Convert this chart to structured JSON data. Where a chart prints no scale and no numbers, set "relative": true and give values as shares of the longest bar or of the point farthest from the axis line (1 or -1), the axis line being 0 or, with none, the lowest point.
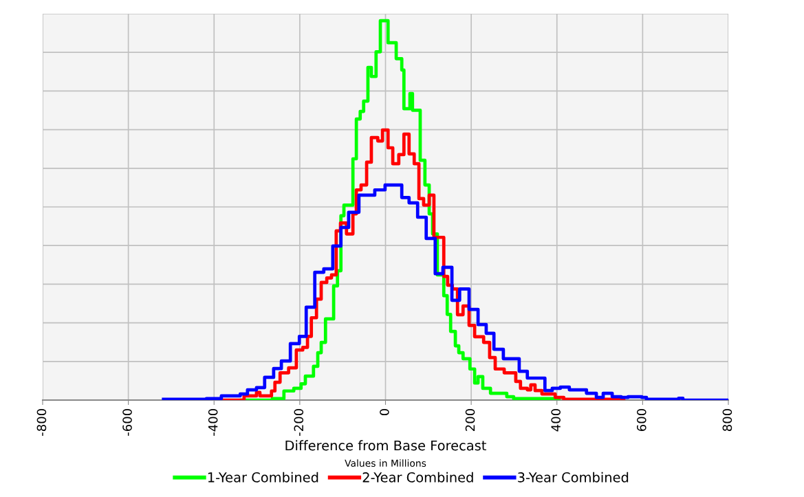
{
  "chart_data": {
    "type": "step",
    "xlabel": "Difference from Base Forecast",
    "annotations": [
      "Values in Millions"
    ],
    "relative": true,
    "xlim": [
      -800,
      800
    ],
    "xticks": [
      -800,
      -600,
      -400,
      -200,
      0,
      200,
      400,
      600,
      800
    ],
    "grid": true,
    "legend": "bottom",
    "line_style": "solid",
    "marker": "none",
    "series": [
      {
        "name": "1-Year Combined",
        "color": "#00ff00",
        "x": [
          -336,
          -264,
          -237,
          -214,
          -197,
          -187,
          -168,
          -158,
          -150,
          -140,
          -121,
          -112,
          -104,
          -97,
          -76,
          -68,
          -59,
          -51,
          -41,
          -33,
          -22,
          -12,
          6,
          25,
          38,
          43,
          57,
          63,
          81,
          92,
          102,
          110,
          121,
          136,
          144,
          152,
          163,
          171,
          181,
          197,
          208,
          216,
          227,
          245,
          283,
          299,
          405
        ],
        "values": [
          0,
          0.004,
          0.024,
          0.031,
          0.043,
          0.063,
          0.089,
          0.125,
          0.152,
          0.214,
          0.301,
          0.341,
          0.486,
          0.514,
          0.636,
          0.741,
          0.761,
          0.788,
          0.877,
          0.853,
          0.918,
          1,
          0.942,
          0.9,
          0.87,
          0.768,
          0.808,
          0.764,
          0.632,
          0.567,
          0.491,
          0.438,
          0.33,
          0.275,
          0.226,
          0.181,
          0.143,
          0.125,
          0.109,
          0.082,
          0.045,
          0.062,
          0.031,
          0.018,
          0.009,
          0.004,
          0
        ]
      },
      {
        "name": "2-Year Combined",
        "color": "#ff0000",
        "x": [
          -383,
          -330,
          -301,
          -293,
          -266,
          -258,
          -246,
          -226,
          -208,
          -193,
          -182,
          -173,
          -161,
          -150,
          -137,
          -126,
          -115,
          -105,
          -91,
          -76,
          -68,
          -57,
          -44,
          -33,
          -18,
          -7,
          6,
          17,
          31,
          43,
          55,
          67,
          78,
          89,
          102,
          113,
          136,
          145,
          156,
          168,
          181,
          195,
          208,
          229,
          243,
          256,
          277,
          304,
          315,
          331,
          339,
          349,
          365,
          396,
          416,
          556
        ],
        "values": [
          0,
          0.011,
          0.02,
          0.011,
          0.024,
          0.047,
          0.072,
          0.085,
          0.132,
          0.139,
          0.168,
          0.217,
          0.266,
          0.31,
          0.322,
          0.33,
          0.446,
          0.467,
          0.438,
          0.491,
          0.554,
          0.567,
          0.627,
          0.692,
          0.683,
          0.712,
          0.665,
          0.623,
          0.647,
          0.701,
          0.649,
          0.623,
          0.531,
          0.514,
          0.54,
          0.429,
          0.326,
          0.303,
          0.293,
          0.225,
          0.248,
          0.197,
          0.167,
          0.152,
          0.112,
          0.082,
          0.072,
          0.049,
          0.031,
          0.027,
          0.04,
          0.025,
          0.016,
          0.007,
          0.002,
          0
        ]
      },
      {
        "name": "3-Year Combined",
        "color": "#0000ff",
        "x": [
          -518,
          -418,
          -383,
          -339,
          -322,
          -301,
          -282,
          -261,
          -243,
          -222,
          -201,
          -185,
          -165,
          -144,
          -123,
          -104,
          -86,
          -62,
          -25,
          -1,
          38,
          55,
          75,
          95,
          116,
          134,
          155,
          173,
          195,
          216,
          235,
          253,
          275,
          312,
          331,
          372,
          389,
          408,
          429,
          469,
          492,
          508,
          529,
          550,
          566,
          598,
          609,
          684,
          694,
          800
        ],
        "values": [
          0.002,
          0.004,
          0.011,
          0.016,
          0.027,
          0.033,
          0.06,
          0.083,
          0.103,
          0.149,
          0.168,
          0.245,
          0.337,
          0.346,
          0.406,
          0.455,
          0.495,
          0.54,
          0.554,
          0.567,
          0.534,
          0.52,
          0.482,
          0.426,
          0.333,
          0.35,
          0.263,
          0.293,
          0.239,
          0.199,
          0.176,
          0.134,
          0.109,
          0.076,
          0.058,
          0.025,
          0.031,
          0.034,
          0.027,
          0.018,
          0.007,
          0.018,
          0.009,
          0.007,
          0.009,
          0.007,
          0.002,
          0.005,
          0,
          0
        ]
      }
    ]
  }
}
